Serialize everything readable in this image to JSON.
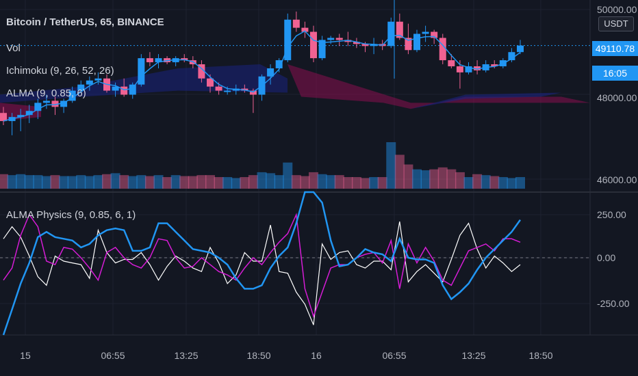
{
  "legend": {
    "symbol": "Bitcoin / TetherUS, 65, BINANCE",
    "vol": "Vol",
    "ichimoku": "Ichimoku (9, 26, 52, 26)",
    "alma": "ALMA (9, 0.85, 6)",
    "physics": "ALMA Physics (9, 0.85, 6, 1)"
  },
  "price_axis": {
    "unit": "USDT",
    "current_price": "49110.78",
    "countdown": "16:05",
    "top_label": "50000.00",
    "labels": [
      "48000.00",
      "46000.00"
    ]
  },
  "indicator_axis": {
    "labels": [
      "250.00",
      "0.00",
      "-250.00"
    ]
  },
  "time_axis": {
    "labels": [
      "15",
      "06:55",
      "13:25",
      "18:50",
      "16",
      "06:55",
      "13:25",
      "18:50"
    ]
  },
  "colors": {
    "up": "#2196f3",
    "down": "#f06292",
    "alma": "#2196f3",
    "physics_blue": "#2196f3",
    "physics_magenta": "#d61cd6",
    "physics_white": "#ffffff",
    "cloud_bull": "#1a237e",
    "cloud_bear": "#880e4f"
  },
  "chart_data": {
    "type": "candlestick",
    "price_range": [
      45600,
      50150
    ],
    "candles": [
      [
        47450,
        47600,
        47150,
        47250
      ],
      [
        47250,
        47450,
        46900,
        47350
      ],
      [
        47350,
        47550,
        47000,
        47400
      ],
      [
        47400,
        47650,
        47200,
        47500
      ],
      [
        47500,
        47800,
        47300,
        47700
      ],
      [
        47700,
        47900,
        47550,
        47750
      ],
      [
        47750,
        47850,
        47400,
        47600
      ],
      [
        47600,
        47800,
        47450,
        47750
      ],
      [
        47750,
        48100,
        47700,
        48000
      ],
      [
        48000,
        48250,
        47950,
        48150
      ],
      [
        48150,
        48350,
        48000,
        48250
      ],
      [
        48250,
        48450,
        48150,
        48300
      ],
      [
        48300,
        48400,
        47950,
        48000
      ],
      [
        48000,
        48200,
        47850,
        48100
      ],
      [
        48100,
        48300,
        47850,
        47900
      ],
      [
        47900,
        48200,
        47800,
        48150
      ],
      [
        48150,
        48900,
        48100,
        48800
      ],
      [
        48800,
        48950,
        48600,
        48700
      ],
      [
        48700,
        48900,
        48550,
        48800
      ],
      [
        48800,
        48850,
        48650,
        48700
      ],
      [
        48700,
        48850,
        48600,
        48800
      ],
      [
        48800,
        48900,
        48700,
        48750
      ],
      [
        48750,
        48850,
        48550,
        48650
      ],
      [
        48650,
        48750,
        48200,
        48300
      ],
      [
        48300,
        48400,
        47950,
        48100
      ],
      [
        48100,
        48200,
        47900,
        48000
      ],
      [
        48000,
        48100,
        47900,
        48000
      ],
      [
        48000,
        48150,
        47900,
        48050
      ],
      [
        48050,
        48150,
        47950,
        48000
      ],
      [
        48000,
        48050,
        47450,
        47900
      ],
      [
        47900,
        48400,
        47750,
        48350
      ],
      [
        48350,
        48650,
        48150,
        48550
      ],
      [
        48550,
        48800,
        48450,
        48750
      ],
      [
        48750,
        49900,
        48700,
        49750
      ],
      [
        49750,
        49950,
        49450,
        49550
      ],
      [
        49550,
        49700,
        49300,
        49450
      ],
      [
        49450,
        49600,
        48700,
        48800
      ],
      [
        48800,
        49350,
        48750,
        49250
      ],
      [
        49250,
        49350,
        49150,
        49300
      ],
      [
        49300,
        49400,
        49100,
        49250
      ],
      [
        49250,
        49450,
        49100,
        49200
      ],
      [
        49200,
        49300,
        49050,
        49150
      ],
      [
        49150,
        49200,
        48950,
        49100
      ],
      [
        49100,
        49300,
        48900,
        49150
      ],
      [
        49150,
        49250,
        49000,
        49100
      ],
      [
        49100,
        49800,
        49050,
        49700
      ],
      [
        49700,
        49900,
        49250,
        49300
      ],
      [
        49300,
        49650,
        48900,
        49000
      ],
      [
        49000,
        49500,
        48950,
        49400
      ],
      [
        49400,
        49600,
        49200,
        49450
      ],
      [
        49450,
        49500,
        49150,
        49300
      ],
      [
        49300,
        49400,
        48650,
        48750
      ],
      [
        48750,
        48900,
        48550,
        48600
      ],
      [
        48600,
        48750,
        48050,
        48450
      ],
      [
        48450,
        48700,
        48400,
        48600
      ],
      [
        48600,
        48750,
        48400,
        48500
      ],
      [
        48500,
        48750,
        48450,
        48650
      ],
      [
        48650,
        48750,
        48550,
        48600
      ],
      [
        48600,
        48800,
        48550,
        48750
      ],
      [
        48750,
        49050,
        48700,
        48950
      ],
      [
        48950,
        49250,
        48900,
        49110.78
      ]
    ],
    "volumes": [
      15,
      14,
      15,
      14,
      14,
      13,
      14,
      13,
      13,
      14,
      13,
      14,
      15,
      16,
      14,
      13,
      14,
      13,
      14,
      12,
      14,
      13,
      13,
      14,
      14,
      12,
      12,
      11,
      12,
      14,
      17,
      16,
      14,
      27,
      14,
      13,
      17,
      15,
      14,
      14,
      12,
      12,
      11,
      12,
      12,
      48,
      35,
      25,
      20,
      19,
      20,
      22,
      20,
      17,
      12,
      15,
      14,
      13,
      12,
      11,
      12
    ],
    "volume_max": 48,
    "physics": {
      "range": [
        -350,
        350
      ],
      "blue": [
        -470,
        -300,
        -150,
        -30,
        120,
        150,
        120,
        110,
        100,
        60,
        80,
        130,
        160,
        170,
        160,
        40,
        40,
        60,
        200,
        200,
        150,
        100,
        50,
        40,
        30,
        0,
        -40,
        -120,
        -180,
        -180,
        -160,
        -60,
        10,
        60,
        200,
        400,
        520,
        320,
        100,
        -50,
        -40,
        0,
        50,
        30,
        20,
        -20,
        110,
        0,
        -10,
        -10,
        -30,
        -160,
        -240,
        -200,
        -150,
        -70,
        0,
        50,
        100,
        150,
        220
      ],
      "magenta": [
        -130,
        -60,
        130,
        250,
        180,
        -20,
        -40,
        60,
        50,
        0,
        -60,
        -130,
        30,
        60,
        0,
        -40,
        -60,
        0,
        110,
        100,
        0,
        -60,
        -50,
        0,
        -40,
        -80,
        -100,
        -130,
        -60,
        0,
        -40,
        30,
        90,
        140,
        250,
        -180,
        -340,
        -200,
        -60,
        -40,
        -40,
        0,
        20,
        30,
        -30,
        100,
        -180,
        80,
        -30,
        60,
        -20,
        -130,
        -160,
        -60,
        40,
        60,
        80,
        40,
        110,
        110,
        90
      ],
      "white": [
        110,
        180,
        120,
        10,
        -110,
        -160,
        10,
        -20,
        -30,
        -40,
        -120,
        160,
        30,
        -30,
        -10,
        -10,
        30,
        -40,
        -130,
        -50,
        10,
        -20,
        -60,
        -80,
        60,
        -30,
        -150,
        -100,
        30,
        -20,
        -20,
        190,
        -80,
        -90,
        -200,
        -270,
        -390,
        80,
        -10,
        30,
        40,
        -40,
        -60,
        -20,
        -20,
        -70,
        210,
        -140,
        -80,
        -40,
        -90,
        -140,
        -10,
        130,
        200,
        50,
        -60,
        10,
        -30,
        -80,
        -40
      ]
    }
  }
}
